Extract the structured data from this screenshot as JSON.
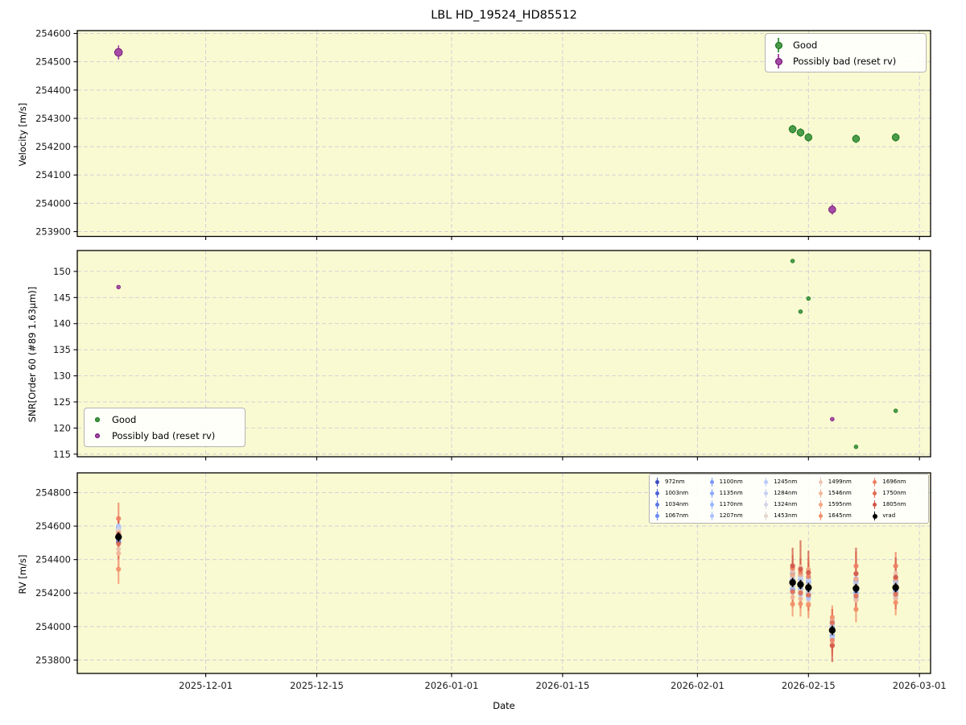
{
  "chart_data": {
    "type": "scatter",
    "title": "LBL HD_19524_HD85512",
    "style": {
      "panel_bg": "#fafad2",
      "grid_color": "#ccccd8",
      "spine_color": "#000000",
      "tick_label_color": "#1a1a1a"
    },
    "x": {
      "label": "Date",
      "origin": "2025-12-01",
      "lim_days": [
        -16.2,
        91.4
      ],
      "ticks": [
        "2025-12-01",
        "2025-12-15",
        "2026-01-01",
        "2026-01-15",
        "2026-02-01",
        "2026-02-15",
        "2026-03-01"
      ]
    },
    "panels": [
      {
        "id": "velocity",
        "ylabel": "Velocity [m/s]",
        "ylim": [
          253883,
          254610
        ],
        "yticks": [
          253900,
          254000,
          254100,
          254200,
          254300,
          254400,
          254500,
          254600
        ]
      },
      {
        "id": "snr",
        "ylabel": "SNR[Order 60 (#89 1.63µm)]",
        "ylim": [
          114.5,
          154
        ],
        "yticks": [
          115,
          120,
          125,
          130,
          135,
          140,
          145,
          150
        ]
      },
      {
        "id": "rv",
        "ylabel": "RV [m/s]",
        "ylim": [
          253720,
          254918
        ],
        "yticks": [
          253800,
          254000,
          254200,
          254400,
          254600,
          254800
        ]
      }
    ],
    "quality_legend": {
      "good_label": "Good",
      "bad_label": "Possibly bad (reset rv)",
      "good_color": "#4b9b4b",
      "good_edge": "#1d7a1d",
      "bad_color": "#a54ba5",
      "bad_edge": "#7a1d7a"
    },
    "wavelengths": [
      {
        "label": "972nm",
        "color": "#3b4cc0"
      },
      {
        "label": "1003nm",
        "color": "#4a63d3"
      },
      {
        "label": "1034nm",
        "color": "#5977e3"
      },
      {
        "label": "1067nm",
        "color": "#6889f0"
      },
      {
        "label": "1100nm",
        "color": "#7899f9"
      },
      {
        "label": "1135nm",
        "color": "#88a8fd"
      },
      {
        "label": "1170nm",
        "color": "#98b5ff"
      },
      {
        "label": "1207nm",
        "color": "#a8c0fe"
      },
      {
        "label": "1245nm",
        "color": "#b7c9f9"
      },
      {
        "label": "1284nm",
        "color": "#c6d0f1"
      },
      {
        "label": "1324nm",
        "color": "#d3d5e7"
      },
      {
        "label": "1453nm",
        "color": "#e2d6cd"
      },
      {
        "label": "1499nm",
        "color": "#ecc8b4"
      },
      {
        "label": "1546nm",
        "color": "#f1b89c"
      },
      {
        "label": "1595nm",
        "color": "#f3a683"
      },
      {
        "label": "1645nm",
        "color": "#f19069"
      },
      {
        "label": "1696nm",
        "color": "#ec8062"
      },
      {
        "label": "1750nm",
        "color": "#e16a50"
      },
      {
        "label": "1805nm",
        "color": "#d25546"
      }
    ],
    "vrad_legend_label": "vrad",
    "vrad_color": "#000000",
    "epochs": [
      {
        "date": "2025-11-20",
        "quality": "bad",
        "velocity": 254533,
        "vel_err": 25,
        "snr": 147.0,
        "vrad": 254535,
        "vrad_err": 28,
        "rv_points": [
          [
            -32,
            55
          ],
          [
            60,
            60
          ],
          [
            -25,
            50
          ],
          [
            52,
            48
          ],
          [
            38,
            46
          ],
          [
            -12,
            44
          ],
          [
            55,
            46
          ],
          [
            28,
            44
          ],
          [
            66,
            55
          ],
          [
            18,
            50
          ],
          [
            45,
            52
          ],
          [
            33,
            58
          ],
          [
            -72,
            70
          ],
          [
            -98,
            78
          ],
          [
            25,
            82
          ],
          [
            -192,
            88
          ],
          [
            110,
            95
          ],
          [
            -40,
            92
          ],
          [
            14,
            105
          ]
        ]
      },
      {
        "date": "2026-02-13",
        "quality": "good",
        "velocity": 254262,
        "vel_err": 15,
        "snr": 152.0,
        "vrad": 254263,
        "vrad_err": 28,
        "rv_points": [
          [
            18,
            40
          ],
          [
            -42,
            42
          ],
          [
            55,
            40
          ],
          [
            -22,
            38
          ],
          [
            40,
            38
          ],
          [
            62,
            36
          ],
          [
            -35,
            38
          ],
          [
            25,
            36
          ],
          [
            99,
            48
          ],
          [
            -58,
            44
          ],
          [
            30,
            46
          ],
          [
            -18,
            50
          ],
          [
            70,
            62
          ],
          [
            -88,
            66
          ],
          [
            45,
            70
          ],
          [
            -129,
            74
          ],
          [
            85,
            80
          ],
          [
            -55,
            85
          ],
          [
            100,
            108
          ]
        ]
      },
      {
        "date": "2026-02-14",
        "quality": "good",
        "velocity": 254250,
        "vel_err": 15,
        "snr": 142.3,
        "vrad": 254251,
        "vrad_err": 28,
        "rv_points": [
          [
            25,
            40
          ],
          [
            -30,
            40
          ],
          [
            48,
            38
          ],
          [
            60,
            38
          ],
          [
            -45,
            36
          ],
          [
            30,
            36
          ],
          [
            -20,
            36
          ],
          [
            55,
            36
          ],
          [
            -62,
            46
          ],
          [
            40,
            44
          ],
          [
            18,
            46
          ],
          [
            -38,
            50
          ],
          [
            105,
            60
          ],
          [
            -85,
            66
          ],
          [
            60,
            70
          ],
          [
            -115,
            76
          ],
          [
            75,
            82
          ],
          [
            -50,
            90
          ],
          [
            92,
            172
          ]
        ]
      },
      {
        "date": "2026-02-15",
        "quality": "good",
        "velocity": 254233,
        "vel_err": 15,
        "snr": 144.8,
        "vrad": 254233,
        "vrad_err": 28,
        "rv_points": [
          [
            30,
            42
          ],
          [
            -42,
            40
          ],
          [
            55,
            40
          ],
          [
            -25,
            38
          ],
          [
            45,
            38
          ],
          [
            -58,
            36
          ],
          [
            35,
            38
          ],
          [
            20,
            36
          ],
          [
            -68,
            46
          ],
          [
            50,
            44
          ],
          [
            -30,
            46
          ],
          [
            15,
            50
          ],
          [
            80,
            64
          ],
          [
            -95,
            68
          ],
          [
            108,
            72
          ],
          [
            -105,
            78
          ],
          [
            65,
            84
          ],
          [
            -45,
            92
          ],
          [
            90,
            130
          ]
        ]
      },
      {
        "date": "2026-02-18",
        "quality": "bad",
        "velocity": 253978,
        "vel_err": 18,
        "snr": 121.7,
        "vrad": 253978,
        "vrad_err": 28,
        "rv_points": [
          [
            22,
            38
          ],
          [
            -28,
            38
          ],
          [
            40,
            36
          ],
          [
            -45,
            36
          ],
          [
            30,
            34
          ],
          [
            55,
            34
          ],
          [
            -35,
            34
          ],
          [
            18,
            34
          ],
          [
            59,
            44
          ],
          [
            -50,
            42
          ],
          [
            35,
            44
          ],
          [
            -15,
            48
          ],
          [
            -75,
            58
          ],
          [
            65,
            62
          ],
          [
            -88,
            66
          ],
          [
            78,
            70
          ],
          [
            -60,
            76
          ],
          [
            45,
            82
          ],
          [
            -92,
            98
          ]
        ]
      },
      {
        "date": "2026-02-21",
        "quality": "good",
        "velocity": 254228,
        "vel_err": 15,
        "snr": 116.4,
        "vrad": 254228,
        "vrad_err": 28,
        "rv_points": [
          [
            28,
            42
          ],
          [
            -35,
            40
          ],
          [
            50,
            40
          ],
          [
            -20,
            38
          ],
          [
            42,
            38
          ],
          [
            -55,
            36
          ],
          [
            30,
            38
          ],
          [
            60,
            36
          ],
          [
            -65,
            46
          ],
          [
            25,
            44
          ],
          [
            -40,
            46
          ],
          [
            18,
            50
          ],
          [
            90,
            62
          ],
          [
            -70,
            66
          ],
          [
            55,
            72
          ],
          [
            -125,
            78
          ],
          [
            134,
            86
          ],
          [
            -45,
            92
          ],
          [
            88,
            155
          ]
        ]
      },
      {
        "date": "2026-02-26",
        "quality": "good",
        "velocity": 254233,
        "vel_err": 15,
        "snr": 123.3,
        "vrad": 254233,
        "vrad_err": 28,
        "rv_points": [
          [
            25,
            40
          ],
          [
            -30,
            40
          ],
          [
            45,
            38
          ],
          [
            -18,
            38
          ],
          [
            38,
            36
          ],
          [
            -48,
            36
          ],
          [
            28,
            36
          ],
          [
            55,
            36
          ],
          [
            -60,
            46
          ],
          [
            22,
            44
          ],
          [
            -35,
            46
          ],
          [
            15,
            50
          ],
          [
            85,
            62
          ],
          [
            -65,
            66
          ],
          [
            50,
            70
          ],
          [
            -90,
            76
          ],
          [
            129,
            84
          ],
          [
            -40,
            90
          ],
          [
            62,
            118
          ]
        ]
      }
    ]
  }
}
